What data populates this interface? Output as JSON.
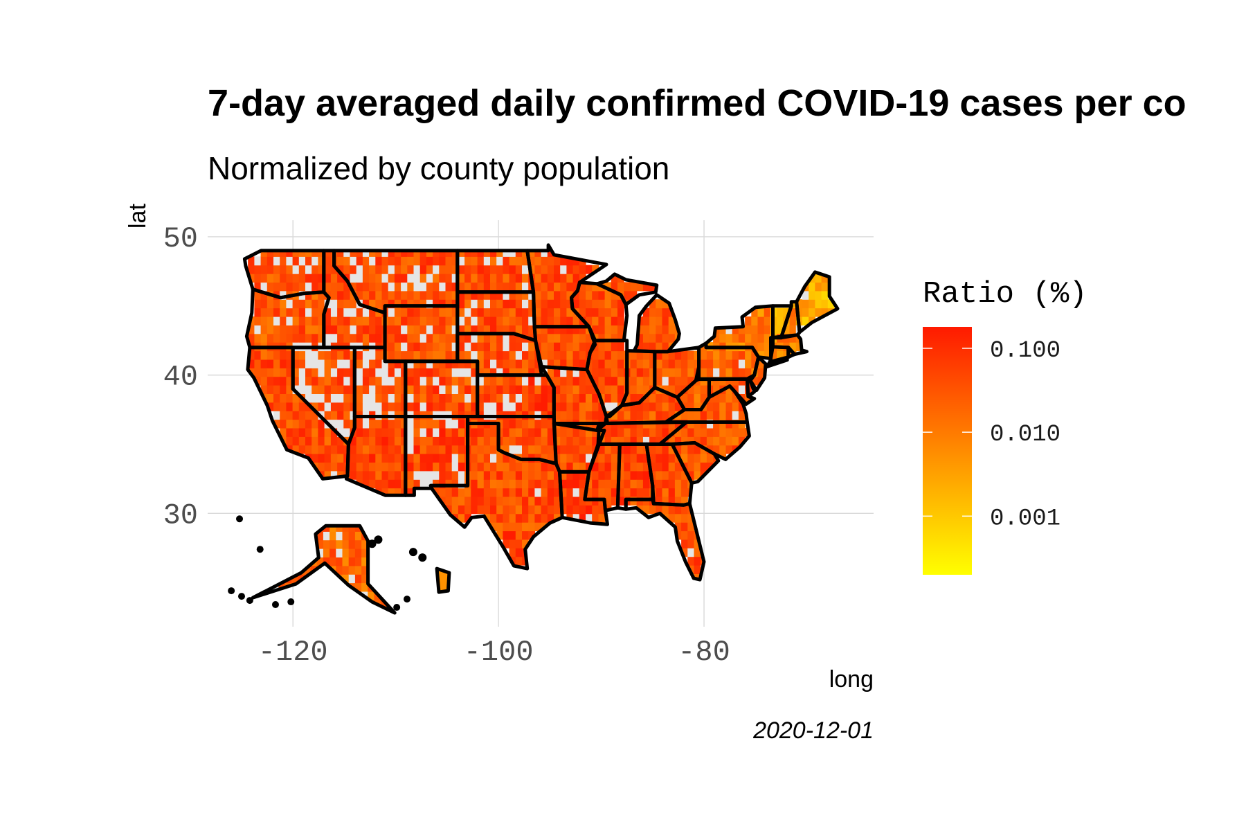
{
  "title": "7-day averaged daily confirmed COVID-19 cases per co",
  "subtitle": "Normalized by county population",
  "x_label": "long",
  "y_label": "lat",
  "caption": "2020-12-01",
  "legend": {
    "title": "Ratio (%)",
    "ticks": [
      "0.100",
      "0.010",
      "0.001"
    ],
    "tick_values": [
      0.1,
      0.01,
      0.001
    ],
    "scale": "log10",
    "range": [
      0.0002,
      0.18
    ],
    "colors": {
      "low": "#FFFF00",
      "high": "#FF1A00"
    }
  },
  "colors": {
    "missing": "#E5E5E5",
    "state_border": "#000000",
    "grid": "#D9D9D9"
  },
  "map": {
    "x_ticks": [
      -120,
      -100,
      -80
    ],
    "x_tick_labels": [
      "-120",
      "-100",
      "-80"
    ],
    "y_ticks": [
      30,
      40,
      50
    ],
    "y_tick_labels": [
      "30",
      "40",
      "50"
    ],
    "x_range": [
      -128.3,
      -63.5
    ],
    "y_range": [
      21.8,
      51.2
    ]
  },
  "chart_data": {
    "type": "heatmap",
    "title": "7-day averaged daily confirmed COVID-19 cases per co",
    "subtitle": "Normalized by county population",
    "xlabel": "long",
    "ylabel": "lat",
    "date": "2020-12-01",
    "legend_position": "right",
    "value_scale": "log10",
    "value_unit": "Ratio (%)",
    "regions": [
      {
        "name": "WA",
        "ratio": 0.04
      },
      {
        "name": "OR",
        "ratio": 0.03
      },
      {
        "name": "CA",
        "ratio": 0.04
      },
      {
        "name": "NV",
        "ratio": 0.04
      },
      {
        "name": "ID",
        "ratio": 0.04
      },
      {
        "name": "MT",
        "ratio": 0.04
      },
      {
        "name": "WY",
        "ratio": 0.04
      },
      {
        "name": "UT",
        "ratio": 0.05
      },
      {
        "name": "AZ",
        "ratio": 0.05
      },
      {
        "name": "CO",
        "ratio": 0.04
      },
      {
        "name": "NM",
        "ratio": 0.05
      },
      {
        "name": "ND",
        "ratio": 0.04
      },
      {
        "name": "SD",
        "ratio": 0.04
      },
      {
        "name": "NE",
        "ratio": 0.04
      },
      {
        "name": "KS",
        "ratio": 0.05
      },
      {
        "name": "OK",
        "ratio": 0.04
      },
      {
        "name": "TX",
        "ratio": 0.04
      },
      {
        "name": "MN",
        "ratio": 0.04
      },
      {
        "name": "IA",
        "ratio": 0.04
      },
      {
        "name": "MO",
        "ratio": 0.04
      },
      {
        "name": "AR",
        "ratio": 0.04
      },
      {
        "name": "LA",
        "ratio": 0.05
      },
      {
        "name": "WI",
        "ratio": 0.04
      },
      {
        "name": "IL",
        "ratio": 0.04
      },
      {
        "name": "MI",
        "ratio": 0.03
      },
      {
        "name": "IN",
        "ratio": 0.04
      },
      {
        "name": "OH",
        "ratio": 0.03
      },
      {
        "name": "KY",
        "ratio": 0.03
      },
      {
        "name": "TN",
        "ratio": 0.04
      },
      {
        "name": "MS",
        "ratio": 0.05
      },
      {
        "name": "AL",
        "ratio": 0.05
      },
      {
        "name": "GA",
        "ratio": 0.04
      },
      {
        "name": "FL",
        "ratio": 0.04
      },
      {
        "name": "SC",
        "ratio": 0.03
      },
      {
        "name": "NC",
        "ratio": 0.03
      },
      {
        "name": "VA",
        "ratio": 0.03
      },
      {
        "name": "WV",
        "ratio": 0.02
      },
      {
        "name": "PA",
        "ratio": 0.02
      },
      {
        "name": "NY",
        "ratio": 0.01
      },
      {
        "name": "VT",
        "ratio": 0.003
      },
      {
        "name": "NH",
        "ratio": 0.008
      },
      {
        "name": "ME",
        "ratio": 0.002
      },
      {
        "name": "MA",
        "ratio": 0.008
      },
      {
        "name": "CT",
        "ratio": 0.01
      },
      {
        "name": "RI",
        "ratio": 0.02
      },
      {
        "name": "NJ",
        "ratio": 0.02
      },
      {
        "name": "DE",
        "ratio": 0.02
      },
      {
        "name": "MD",
        "ratio": 0.02
      },
      {
        "name": "AK",
        "ratio": 0.02
      },
      {
        "name": "HI",
        "ratio": 0.005
      }
    ]
  }
}
